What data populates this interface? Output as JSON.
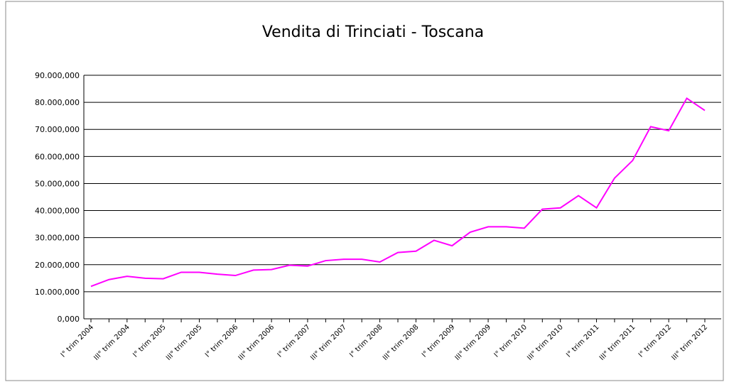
{
  "chart_data": {
    "type": "line",
    "title": "Vendita di Trinciati - Toscana",
    "categories": [
      "I° trim 2004",
      null,
      "III° trim 2004",
      null,
      "I° trim 2005",
      null,
      "III° trim 2005",
      null,
      "I° trim 2006",
      null,
      "III° trim 2006",
      null,
      "I° trim 2007",
      null,
      "III° trim 2007",
      null,
      "I° trim 2008",
      null,
      "III° trim 2008",
      null,
      "I° trim 2009",
      null,
      "III° trim 2009",
      null,
      "I° trim 2010",
      null,
      "III° trim 2010",
      null,
      "I° trim 2011",
      null,
      "III° trim 2011",
      null,
      "I° trim 2012",
      null,
      "III° trim 2012"
    ],
    "series": [
      {
        "name": "Toscana",
        "color": "#ff00ff",
        "values": [
          12000,
          14500,
          15700,
          15000,
          14800,
          17200,
          17200,
          16500,
          16000,
          18000,
          18200,
          19800,
          19500,
          21500,
          22000,
          22000,
          21000,
          24500,
          25000,
          29000,
          27000,
          32000,
          34000,
          34000,
          33500,
          40500,
          41000,
          45500,
          41000,
          52000,
          58500,
          71000,
          69500,
          81500,
          77000
        ]
      }
    ],
    "ylim": [
      0,
      90000
    ],
    "yticks": [
      {
        "value": 0,
        "label": "0,000"
      },
      {
        "value": 10000,
        "label": "10.000,000"
      },
      {
        "value": 20000,
        "label": "20.000,000"
      },
      {
        "value": 30000,
        "label": "30.000,000"
      },
      {
        "value": 40000,
        "label": "40.000,000"
      },
      {
        "value": 50000,
        "label": "50.000,000"
      },
      {
        "value": 60000,
        "label": "60.000,000"
      },
      {
        "value": 70000,
        "label": "70.000,000"
      },
      {
        "value": 80000,
        "label": "80.000,000"
      },
      {
        "value": 90000,
        "label": "90.000,000"
      }
    ],
    "grid": true
  }
}
